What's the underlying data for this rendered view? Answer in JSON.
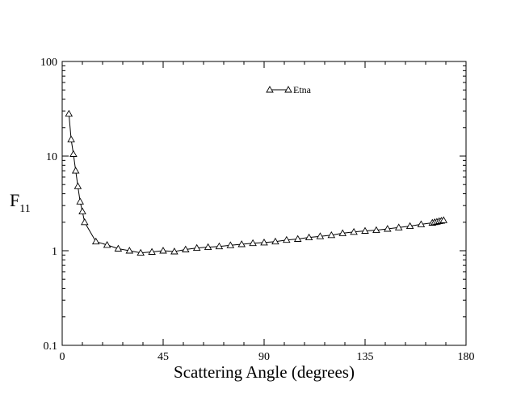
{
  "chart_data": {
    "type": "line",
    "title": "",
    "xlabel": "Scattering Angle (degrees)",
    "ylabel": "F",
    "ylabel_subscript": "11",
    "xlim": [
      0,
      180
    ],
    "ylim": [
      0.1,
      100
    ],
    "yscale": "log",
    "grid": false,
    "legend_position": "top-center",
    "x_ticks": [
      0,
      45,
      90,
      135,
      180
    ],
    "x_tick_labels": [
      "0",
      "45",
      "90",
      "135",
      "180"
    ],
    "y_ticks": [
      0.1,
      1,
      10,
      100
    ],
    "y_tick_labels": [
      "0.1",
      "1",
      "10",
      "100"
    ],
    "marker": "open-triangle",
    "line_color": "#000000",
    "series": [
      {
        "name": "Etna",
        "x": [
          3,
          4,
          5,
          6,
          7,
          8,
          9,
          10,
          15,
          20,
          25,
          30,
          35,
          40,
          45,
          50,
          55,
          60,
          65,
          70,
          75,
          80,
          85,
          90,
          95,
          100,
          105,
          110,
          115,
          120,
          125,
          130,
          135,
          140,
          145,
          150,
          155,
          160,
          165,
          166,
          167,
          168,
          169,
          170
        ],
        "y": [
          28,
          15,
          10.5,
          7,
          4.8,
          3.3,
          2.6,
          2.0,
          1.25,
          1.15,
          1.05,
          1.0,
          0.95,
          0.97,
          1.0,
          0.98,
          1.03,
          1.07,
          1.09,
          1.11,
          1.14,
          1.17,
          1.2,
          1.22,
          1.25,
          1.3,
          1.33,
          1.38,
          1.42,
          1.46,
          1.53,
          1.58,
          1.62,
          1.65,
          1.7,
          1.76,
          1.82,
          1.9,
          1.97,
          2.0,
          2.02,
          2.05,
          2.07,
          2.1
        ]
      }
    ]
  }
}
